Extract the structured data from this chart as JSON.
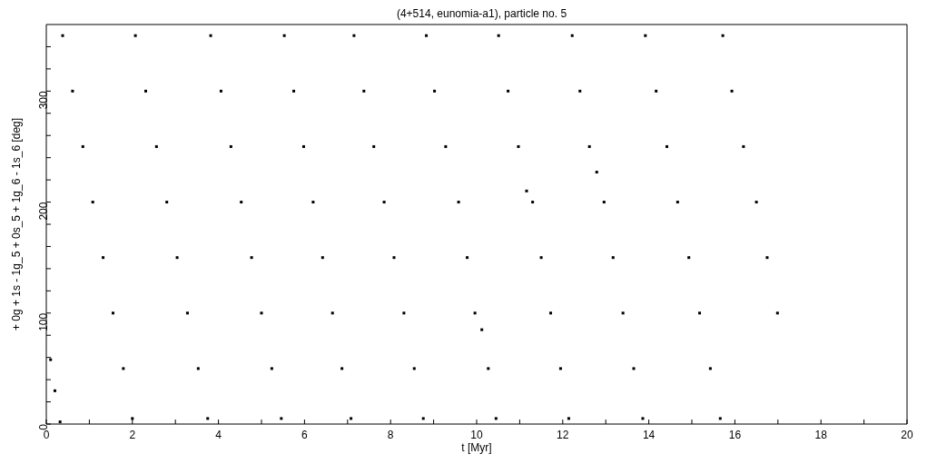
{
  "chart_data": {
    "type": "scatter",
    "title": "(4+514, eunomia-a1), particle no. 5",
    "xlabel": "t [Myr]",
    "ylabel": "+ 0g + 1s - 1g_5 + 0s_5 + 1g_6 - 1s_6 [deg]",
    "series": [
      {
        "color": "#000000",
        "x": [
          0.1,
          0.2,
          0.32,
          0.38,
          0.61,
          0.85,
          1.08,
          1.32,
          1.55,
          1.79,
          2.0,
          2.07,
          2.31,
          2.56,
          2.8,
          3.04,
          3.28,
          3.53,
          3.75,
          3.82,
          4.06,
          4.29,
          4.53,
          4.77,
          5.0,
          5.24,
          5.46,
          5.53,
          5.75,
          5.98,
          6.2,
          6.42,
          6.65,
          6.87,
          7.08,
          7.15,
          7.38,
          7.61,
          7.85,
          8.08,
          8.31,
          8.55,
          8.76,
          8.83,
          9.02,
          9.28,
          9.58,
          9.78,
          9.96,
          10.12,
          10.27,
          10.45,
          10.51,
          10.73,
          10.97,
          11.16,
          11.3,
          11.5,
          11.72,
          11.95,
          12.14,
          12.22,
          12.4,
          12.62,
          12.79,
          12.96,
          13.17,
          13.4,
          13.65,
          13.86,
          13.92,
          14.17,
          14.42,
          14.67,
          14.93,
          15.18,
          15.43,
          15.66,
          15.72,
          15.93,
          16.2,
          16.5,
          16.75,
          16.99
        ],
        "values": [
          58,
          30,
          2,
          350,
          300,
          250,
          200,
          150,
          100,
          50,
          5,
          350,
          300,
          250,
          200,
          150,
          100,
          50,
          5,
          350,
          300,
          250,
          200,
          150,
          100,
          50,
          5,
          350,
          300,
          250,
          200,
          150,
          100,
          50,
          5,
          350,
          300,
          250,
          200,
          150,
          100,
          50,
          5,
          350,
          300,
          250,
          200,
          150,
          100,
          85,
          50,
          5,
          350,
          300,
          250,
          210,
          200,
          150,
          100,
          50,
          5,
          350,
          300,
          250,
          227,
          200,
          150,
          100,
          50,
          5,
          350,
          300,
          250,
          200,
          150,
          100,
          50,
          5,
          350,
          300,
          250,
          200,
          150,
          100
        ]
      }
    ],
    "xlim": [
      0,
      20
    ],
    "ylim": [
      0,
      360
    ],
    "xticks": [
      0,
      {
        "value": 1,
        "label": null
      },
      2,
      {
        "value": 3,
        "label": null
      },
      4,
      {
        "value": 5,
        "label": null
      },
      6,
      {
        "value": 7,
        "label": null
      },
      8,
      {
        "value": 9,
        "label": null
      },
      10,
      {
        "value": 11,
        "label": null
      },
      12,
      {
        "value": 13,
        "label": null
      },
      14,
      {
        "value": 15,
        "label": null
      },
      16,
      {
        "value": 17,
        "label": null
      },
      18,
      {
        "value": 19,
        "label": null
      },
      20
    ],
    "yticks": [
      0,
      {
        "value": 20,
        "label": null
      },
      {
        "value": 40,
        "label": null
      },
      {
        "value": 60,
        "label": null
      },
      {
        "value": 80,
        "label": null
      },
      100,
      {
        "value": 120,
        "label": null
      },
      {
        "value": 140,
        "label": null
      },
      {
        "value": 160,
        "label": null
      },
      {
        "value": 180,
        "label": null
      },
      200,
      {
        "value": 220,
        "label": null
      },
      {
        "value": 240,
        "label": null
      },
      {
        "value": 260,
        "label": null
      },
      {
        "value": 280,
        "label": null
      },
      300,
      {
        "value": 320,
        "label": null
      },
      {
        "value": 340,
        "label": null
      }
    ],
    "grid": false,
    "marker": "square",
    "legend": false
  }
}
